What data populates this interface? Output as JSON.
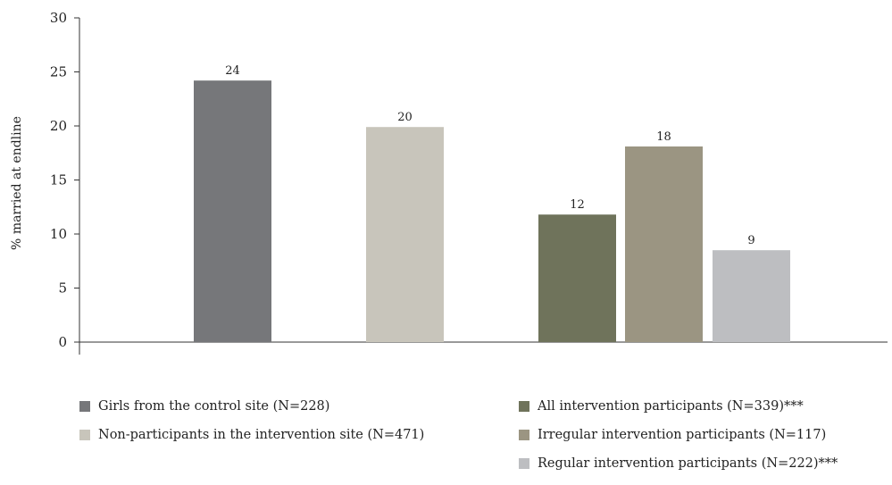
{
  "chart_data": {
    "type": "bar",
    "ylabel": "% married at endline",
    "ylim": [
      0,
      30
    ],
    "yticks": [
      0,
      5,
      10,
      15,
      20,
      25,
      30
    ],
    "grid": false,
    "series": [
      {
        "name": "Girls from the control site (N=228)",
        "value": 24.2,
        "label": "24",
        "color": "#76777a"
      },
      {
        "name": "Non-participants in the intervention site (N=471)",
        "value": 19.9,
        "label": "20",
        "color": "#c8c5bb"
      },
      {
        "name": "All intervention participants (N=339)***",
        "value": 11.8,
        "label": "12",
        "color": "#6f735b"
      },
      {
        "name": "Irregular intervention participants (N=117)",
        "value": 18.1,
        "label": "18",
        "color": "#9b9582"
      },
      {
        "name": "Regular intervention participants (N=222)***",
        "value": 8.5,
        "label": "9",
        "color": "#bdbec1"
      }
    ],
    "legend_placement": "bottom"
  }
}
